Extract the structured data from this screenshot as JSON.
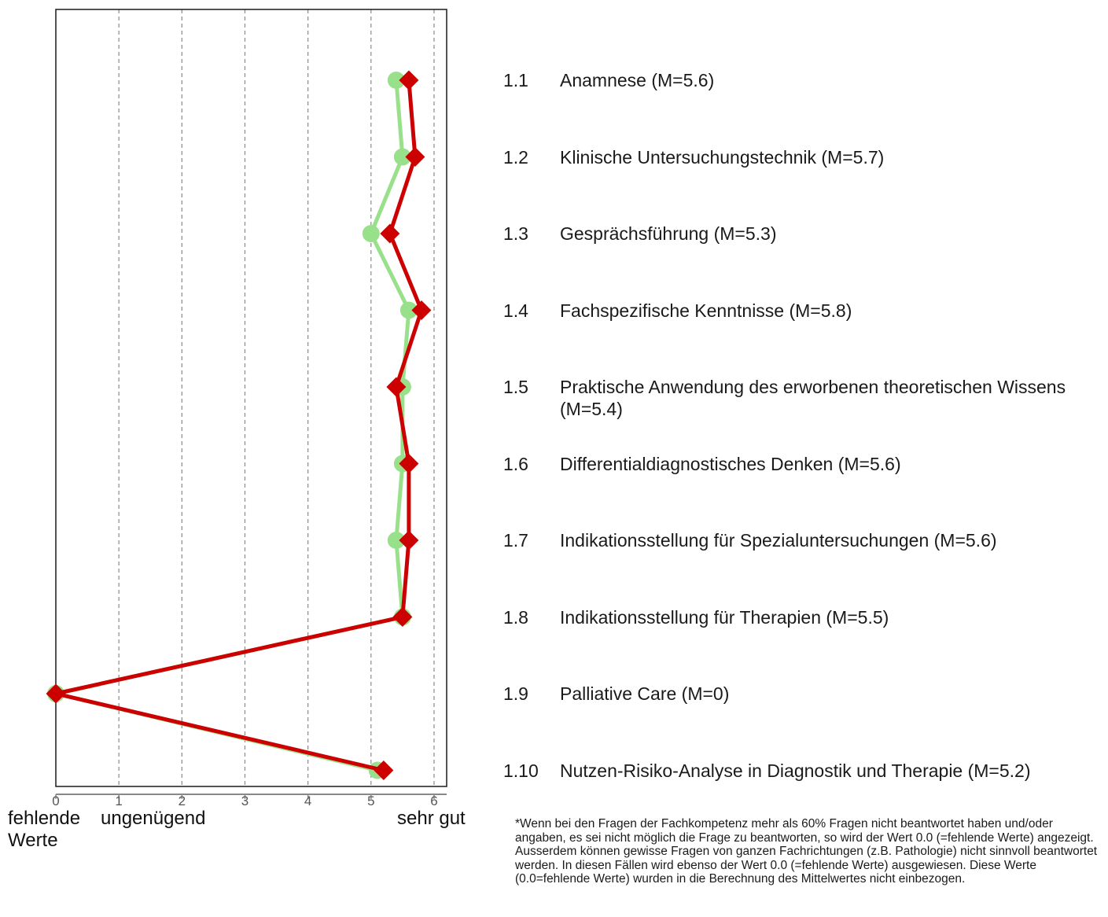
{
  "chart_data": {
    "type": "line",
    "orientation": "horizontal",
    "xlim": [
      0,
      6.2
    ],
    "x_ticks": [
      "0",
      "1",
      "2",
      "3",
      "4",
      "5",
      "6"
    ],
    "grid": "vertical dashed at integer values",
    "scale_labels": {
      "low": "fehlende Werte",
      "mid": "ungenügend",
      "high": "sehr gut"
    },
    "categories": [
      "1.1",
      "1.2",
      "1.3",
      "1.4",
      "1.5",
      "1.6",
      "1.7",
      "1.8",
      "1.9",
      "1.10"
    ],
    "series": [
      {
        "marker": "circle",
        "color": "#99e08a",
        "values": [
          5.4,
          5.5,
          5.0,
          5.6,
          5.5,
          5.5,
          5.4,
          5.5,
          0,
          5.1
        ]
      },
      {
        "marker": "diamond",
        "color": "#cc0000",
        "values": [
          5.6,
          5.7,
          5.3,
          5.8,
          5.4,
          5.6,
          5.6,
          5.5,
          0,
          5.2
        ]
      }
    ]
  },
  "items": [
    {
      "num": "1.1",
      "label": "Anamnese (M=5.6)"
    },
    {
      "num": "1.2",
      "label": "Klinische Untersuchungstechnik (M=5.7)"
    },
    {
      "num": "1.3",
      "label": "Gesprächsführung (M=5.3)"
    },
    {
      "num": "1.4",
      "label": "Fachspezifische Kenntnisse (M=5.8)"
    },
    {
      "num": "1.5",
      "label": "Praktische Anwendung des erworbenen theoretischen Wissens (M=5.4)"
    },
    {
      "num": "1.6",
      "label": "Differentialdiagnostisches Denken (M=5.6)"
    },
    {
      "num": "1.7",
      "label": "Indikationsstellung für Spezialuntersuchungen (M=5.6)"
    },
    {
      "num": "1.8",
      "label": "Indikationsstellung für Therapien (M=5.5)"
    },
    {
      "num": "1.9",
      "label": "Palliative Care (M=0)"
    },
    {
      "num": "1.10",
      "label": "Nutzen-Risiko-Analyse in Diagnostik und Therapie (M=5.2)"
    }
  ],
  "footnote": "*Wenn bei den Fragen der Fachkompetenz mehr als 60% Fragen nicht beantwortet haben und/oder angaben, es sei nicht möglich die Frage zu beantworten, so wird der Wert 0.0 (=fehlende Werte) angezeigt. Ausserdem können gewisse Fragen von ganzen Fachrichtungen (z.B. Pathologie) nicht sinnvoll beantwortet werden. In diesen Fällen wird ebenso der Wert 0.0 (=fehlende Werte) ausgewiesen. Diese Werte (0.0=fehlende Werte) wurden in die Berechnung des Mittelwertes nicht einbezogen."
}
